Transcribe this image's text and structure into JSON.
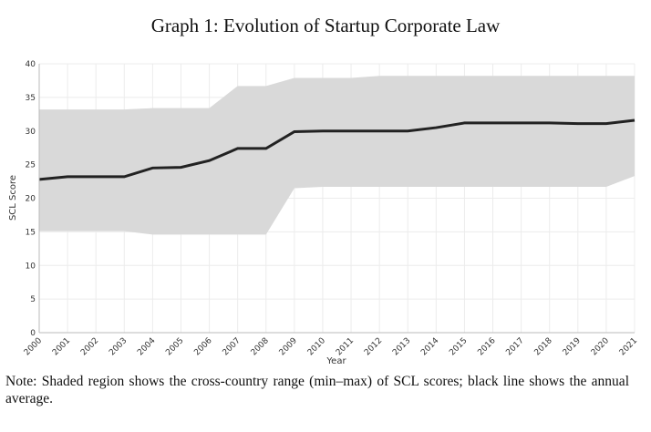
{
  "title": "Graph 1: Evolution of Startup Corporate Law",
  "note": "Note: Shaded region shows the cross-country range (min–max) of SCL scores; black line shows the annual average.",
  "chart_data": {
    "type": "line",
    "title": "Graph 1: Evolution of Startup Corporate Law",
    "xlabel": "Year",
    "ylabel": "SCL Score",
    "ylim": [
      0,
      40
    ],
    "yticks": [
      "0",
      "5",
      "10",
      "15",
      "20",
      "25",
      "30",
      "35",
      "40"
    ],
    "x": [
      "2000",
      "2001",
      "2002",
      "2003",
      "2004",
      "2005",
      "2006",
      "2007",
      "2008",
      "2009",
      "2010",
      "2011",
      "2012",
      "2013",
      "2014",
      "2015",
      "2016",
      "2017",
      "2018",
      "2019",
      "2020",
      "2021"
    ],
    "grid": true,
    "series": [
      {
        "role": "average",
        "color": "#222222",
        "values": [
          22.8,
          23.2,
          23.2,
          23.2,
          24.5,
          24.6,
          25.6,
          27.4,
          27.4,
          29.9,
          30.0,
          30.0,
          30.0,
          30.0,
          30.5,
          31.2,
          31.2,
          31.2,
          31.2,
          31.1,
          31.1,
          31.6
        ]
      },
      {
        "role": "max",
        "color": "#d9d9d9",
        "values": [
          33.2,
          33.2,
          33.2,
          33.2,
          33.4,
          33.4,
          33.4,
          36.7,
          36.7,
          37.9,
          37.9,
          37.9,
          38.2,
          38.2,
          38.2,
          38.2,
          38.2,
          38.2,
          38.2,
          38.2,
          38.2,
          38.2
        ]
      },
      {
        "role": "min",
        "color": "#d9d9d9",
        "values": [
          15.1,
          15.1,
          15.1,
          15.1,
          14.6,
          14.6,
          14.6,
          14.6,
          14.6,
          21.5,
          21.7,
          21.7,
          21.7,
          21.7,
          21.7,
          21.7,
          21.7,
          21.7,
          21.7,
          21.7,
          21.7,
          23.3
        ]
      }
    ]
  }
}
